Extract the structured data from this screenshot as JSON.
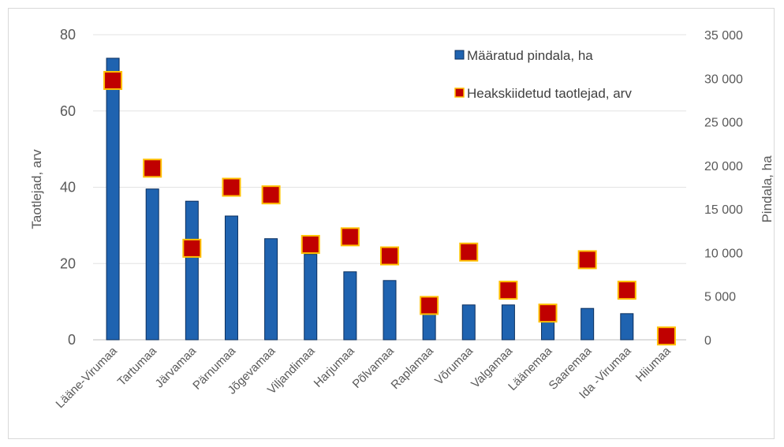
{
  "chart_data": {
    "type": "bar+scatter",
    "categories": [
      "Lääne-Virumaa",
      "Tartumaa",
      "Järvamaa",
      "Pärnumaa",
      "Jõgevamaa",
      "Viljandimaa",
      "Harjumaa",
      "Põlvamaa",
      "Raplamaa",
      "Võrumaa",
      "Valgamaa",
      "Läänemaa",
      "Saaremaa",
      "Ida -Virumaa",
      "Hiiumaa"
    ],
    "series": [
      {
        "name": "Määratud pindala, ha",
        "kind": "bar",
        "axis": "right",
        "color": "#1f63b0",
        "values": [
          32300,
          17300,
          15900,
          14200,
          11600,
          9800,
          7800,
          6800,
          3300,
          4000,
          4000,
          2300,
          3600,
          3000,
          0
        ]
      },
      {
        "name": "Heakskiidetud taotlejad, arv",
        "kind": "marker",
        "axis": "left",
        "color": "#c00000",
        "edge": "#ffc000",
        "values": [
          68,
          45,
          24,
          40,
          38,
          25,
          27,
          22,
          9,
          23,
          13,
          7,
          21,
          13,
          1
        ]
      }
    ],
    "y_left": {
      "label": "Taotlejad, arv",
      "range": [
        0,
        80
      ],
      "ticks": [
        "0",
        "20",
        "40",
        "60",
        "80"
      ]
    },
    "y_right": {
      "label": "Pindala, ha",
      "range": [
        0,
        35000
      ],
      "ticks": [
        "0",
        "5 000",
        "10 000",
        "15 000",
        "20 000",
        "25 000",
        "30 000",
        "35 000"
      ]
    },
    "grid": true,
    "legend": "top-right"
  }
}
